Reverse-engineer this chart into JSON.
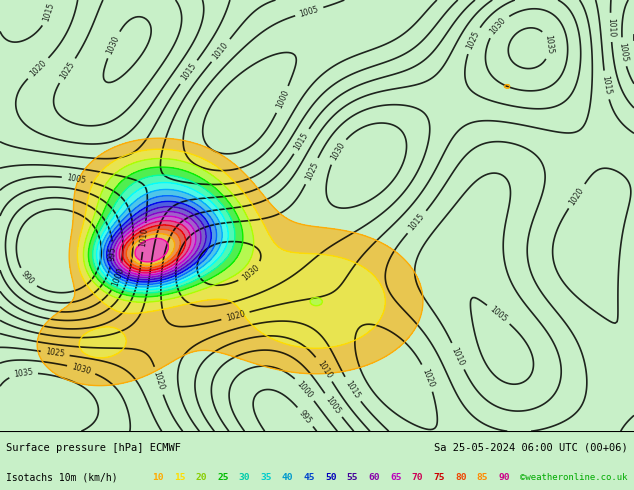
{
  "title_left": "Surface pressure [hPa] ECMWF",
  "title_right": "Sa 25-05-2024 06:00 UTC (00+06)",
  "legend_label": "Isotachs 10m (km/h)",
  "copyright": "©weatheronline.co.uk",
  "isotach_values": [
    10,
    15,
    20,
    25,
    30,
    35,
    40,
    45,
    50,
    55,
    60,
    65,
    70,
    75,
    80,
    85,
    90
  ],
  "isotach_colors": [
    "#ffaa00",
    "#ffcc00",
    "#aaff00",
    "#00ff00",
    "#00ffaa",
    "#00ffff",
    "#00aaff",
    "#0055ff",
    "#0000ff",
    "#5500ff",
    "#aa00ff",
    "#ff00ff",
    "#ff0055",
    "#ff0000",
    "#ff5500",
    "#ffaa00",
    "#ff00aa"
  ],
  "bg_color": "#c8f0c8",
  "map_bg": "#c8f0c8",
  "bottom_bar_color": "#ffffff",
  "text_color": "#000000",
  "fig_width": 6.34,
  "fig_height": 4.9,
  "dpi": 100
}
